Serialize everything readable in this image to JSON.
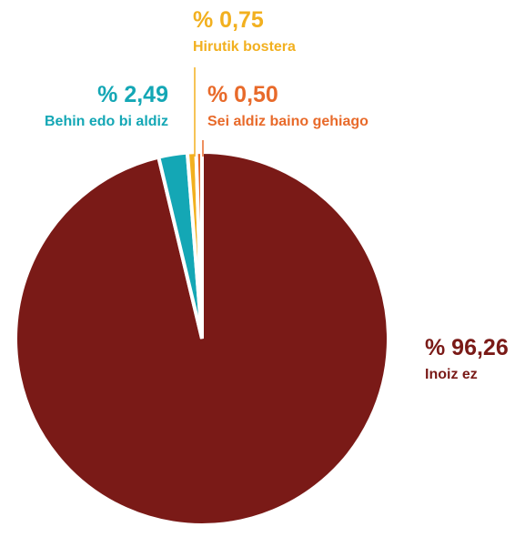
{
  "chart_data": {
    "type": "pie",
    "categories": [
      "Inoiz ez",
      "Behin edo bi aldiz",
      "Hirutik bostera",
      "Sei aldiz baino gehiago"
    ],
    "values": [
      96.26,
      2.49,
      0.75,
      0.5
    ],
    "value_labels": [
      "% 96,26",
      "% 2,49",
      "% 0,75",
      "% 0,50"
    ],
    "colors": [
      "#7a1a17",
      "#14a7b5",
      "#f2b01f",
      "#e86a2a"
    ]
  }
}
